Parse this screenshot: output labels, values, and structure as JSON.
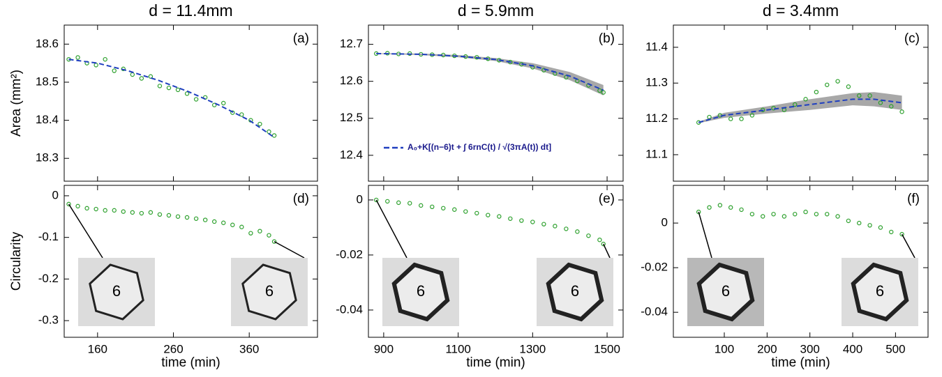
{
  "chart_data": [
    {
      "type": "scatter",
      "title": "d = 11.4mm",
      "panel_label": "(a)",
      "ylabel": "Area (mm²)",
      "xlim": [
        116,
        450
      ],
      "xticks": [
        160,
        260,
        360
      ],
      "ylim": [
        18.24,
        18.65
      ],
      "yticks": [
        18.3,
        18.4,
        18.5,
        18.6
      ],
      "points": {
        "color": "#2ca02c",
        "x": [
          122,
          134,
          146,
          158,
          170,
          182,
          194,
          206,
          218,
          230,
          242,
          254,
          266,
          278,
          290,
          302,
          314,
          326,
          338,
          350,
          362,
          374,
          386,
          393
        ],
        "y": [
          18.56,
          18.565,
          18.55,
          18.545,
          18.56,
          18.53,
          18.535,
          18.52,
          18.51,
          18.515,
          18.49,
          18.485,
          18.48,
          18.47,
          18.455,
          18.46,
          18.44,
          18.445,
          18.42,
          18.415,
          18.4,
          18.39,
          18.37,
          18.36
        ]
      },
      "fit": {
        "color": "#1f3fbf",
        "x": [
          122,
          160,
          200,
          240,
          280,
          320,
          360,
          393
        ],
        "y": [
          18.56,
          18.55,
          18.53,
          18.505,
          18.475,
          18.44,
          18.4,
          18.355
        ]
      }
    },
    {
      "type": "scatter",
      "title": "d = 5.9mm",
      "panel_label": "(b)",
      "xlim": [
        859,
        1543
      ],
      "xticks": [
        900,
        1100,
        1300,
        1500
      ],
      "ylim": [
        12.33,
        12.752
      ],
      "yticks": [
        12.4,
        12.5,
        12.6,
        12.7
      ],
      "points": {
        "color": "#2ca02c",
        "x": [
          880,
          910,
          940,
          970,
          1000,
          1030,
          1060,
          1090,
          1120,
          1150,
          1180,
          1210,
          1240,
          1270,
          1300,
          1330,
          1360,
          1390,
          1420,
          1450,
          1480,
          1490
        ],
        "y": [
          12.675,
          12.676,
          12.674,
          12.675,
          12.673,
          12.672,
          12.671,
          12.669,
          12.667,
          12.665,
          12.661,
          12.657,
          12.652,
          12.646,
          12.638,
          12.63,
          12.621,
          12.611,
          12.601,
          12.589,
          12.575,
          12.57
        ]
      },
      "fit": {
        "color": "#1f3fbf",
        "name": "A₀+K[(n−6)t + ∫ 6rnC(t) / √(3πA(t)) dt]",
        "x": [
          880,
          1000,
          1100,
          1200,
          1300,
          1400,
          1490
        ],
        "y": [
          12.675,
          12.673,
          12.668,
          12.659,
          12.642,
          12.614,
          12.576
        ],
        "band_color": "#999999",
        "lower": [
          12.674,
          12.671,
          12.665,
          12.655,
          12.635,
          12.603,
          12.562
        ],
        "upper": [
          12.676,
          12.675,
          12.671,
          12.663,
          12.649,
          12.625,
          12.59
        ]
      }
    },
    {
      "type": "scatter",
      "title": "d = 3.4mm",
      "panel_label": "(c)",
      "xlim": [
        -19,
        576
      ],
      "xticks": [
        100,
        200,
        300,
        400,
        500
      ],
      "ylim": [
        11.026,
        11.462
      ],
      "yticks": [
        11.1,
        11.2,
        11.3,
        11.4
      ],
      "points": {
        "color": "#2ca02c",
        "x": [
          40,
          65,
          90,
          115,
          140,
          165,
          190,
          215,
          240,
          265,
          290,
          315,
          340,
          365,
          390,
          415,
          440,
          465,
          490,
          515
        ],
        "y": [
          11.19,
          11.205,
          11.21,
          11.2,
          11.2,
          11.21,
          11.225,
          11.23,
          11.225,
          11.24,
          11.255,
          11.275,
          11.295,
          11.305,
          11.29,
          11.265,
          11.265,
          11.245,
          11.235,
          11.22
        ]
      },
      "fit": {
        "color": "#1f3fbf",
        "x": [
          40,
          100,
          200,
          300,
          400,
          450,
          515
        ],
        "y": [
          11.19,
          11.21,
          11.225,
          11.24,
          11.255,
          11.255,
          11.245
        ],
        "band_color": "#999999",
        "lower": [
          11.188,
          11.203,
          11.215,
          11.225,
          11.238,
          11.235,
          11.225
        ],
        "upper": [
          11.192,
          11.217,
          11.235,
          11.255,
          11.272,
          11.275,
          11.265
        ]
      }
    },
    {
      "type": "scatter",
      "panel_label": "(d)",
      "ylabel": "Circularity",
      "xlabel": "time (min)",
      "xlim": [
        116,
        450
      ],
      "xticks": [
        160,
        260,
        360
      ],
      "ylim": [
        -0.34,
        0.025
      ],
      "yticks": [
        0,
        -0.1,
        -0.2,
        -0.3
      ],
      "points": {
        "color": "#2ca02c",
        "x": [
          122,
          134,
          146,
          158,
          170,
          182,
          194,
          206,
          218,
          230,
          242,
          254,
          266,
          278,
          290,
          302,
          314,
          326,
          338,
          350,
          362,
          374,
          386,
          393
        ],
        "y": [
          -0.02,
          -0.025,
          -0.03,
          -0.032,
          -0.035,
          -0.035,
          -0.038,
          -0.04,
          -0.042,
          -0.04,
          -0.045,
          -0.047,
          -0.05,
          -0.052,
          -0.055,
          -0.058,
          -0.062,
          -0.065,
          -0.07,
          -0.075,
          -0.09,
          -0.085,
          -0.095,
          -0.11
        ]
      },
      "insets": [
        {
          "label": "6"
        },
        {
          "label": "6"
        }
      ]
    },
    {
      "type": "scatter",
      "panel_label": "(e)",
      "xlabel": "time (min)",
      "xlim": [
        859,
        1543
      ],
      "xticks": [
        900,
        1100,
        1300,
        1500
      ],
      "ylim": [
        -0.0499,
        0.0053
      ],
      "yticks": [
        0,
        -0.02,
        -0.04
      ],
      "points": {
        "color": "#2ca02c",
        "x": [
          880,
          910,
          940,
          970,
          1000,
          1030,
          1060,
          1090,
          1120,
          1150,
          1180,
          1210,
          1240,
          1270,
          1300,
          1330,
          1360,
          1390,
          1420,
          1450,
          1480,
          1490
        ],
        "y": [
          0,
          -0.0005,
          -0.001,
          -0.0012,
          -0.002,
          -0.0025,
          -0.003,
          -0.0035,
          -0.0042,
          -0.0048,
          -0.0055,
          -0.006,
          -0.0068,
          -0.0075,
          -0.008,
          -0.0088,
          -0.0095,
          -0.0105,
          -0.0115,
          -0.013,
          -0.0145,
          -0.016
        ]
      },
      "insets": [
        {
          "label": "6"
        },
        {
          "label": "6"
        }
      ]
    },
    {
      "type": "scatter",
      "panel_label": "(f)",
      "xlabel": "time (min)",
      "xlim": [
        -19,
        576
      ],
      "xticks": [
        100,
        200,
        300,
        400,
        500
      ],
      "ylim": [
        -0.0512,
        0.0169
      ],
      "yticks": [
        0,
        -0.02,
        -0.04
      ],
      "points": {
        "color": "#2ca02c",
        "x": [
          40,
          65,
          90,
          115,
          140,
          165,
          190,
          215,
          240,
          265,
          290,
          315,
          340,
          365,
          390,
          415,
          440,
          465,
          490,
          515
        ],
        "y": [
          0.005,
          0.007,
          0.008,
          0.007,
          0.006,
          0.004,
          0.003,
          0.004,
          0.003,
          0.004,
          0.005,
          0.004,
          0.004,
          0.003,
          0.001,
          0,
          -0.001,
          -0.002,
          -0.004,
          -0.005
        ]
      },
      "insets": [
        {
          "label": "6"
        },
        {
          "label": "6"
        }
      ]
    }
  ]
}
